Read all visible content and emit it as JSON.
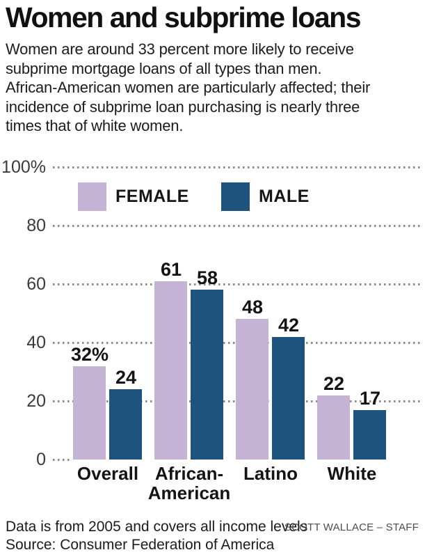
{
  "header": {
    "title": "Women and subprime loans",
    "description": "Women are around 33 percent more likely to receive\nsubprime mortgage loans of all types than men.\nAfrican-American women are particularly affected; their\nincidence of subprime loan purchasing is nearly three\ntimes that of white women."
  },
  "chart_data": {
    "type": "bar",
    "title": "Women and subprime loans",
    "xlabel": "",
    "ylabel": "",
    "ylim": [
      0,
      100
    ],
    "grid": "dotted horizontal gridlines",
    "legend_position": "top inside plot, between 100% and 80 gridlines",
    "categories": [
      "Overall",
      "African-\nAmerican",
      "Latino",
      "White"
    ],
    "series": [
      {
        "name": "FEMALE",
        "color": "#c5b3d6",
        "values": [
          32,
          61,
          48,
          22
        ],
        "labels": [
          "32%",
          "61",
          "48",
          "22"
        ]
      },
      {
        "name": "MALE",
        "color": "#1e537e",
        "values": [
          24,
          58,
          42,
          17
        ],
        "labels": [
          "24",
          "58",
          "42",
          "17"
        ]
      }
    ],
    "y_ticks": [
      {
        "label": "100%",
        "value": 100
      },
      {
        "label": "80",
        "value": 80
      },
      {
        "label": "60",
        "value": 60
      },
      {
        "label": "40",
        "value": 40
      },
      {
        "label": "20",
        "value": 20
      },
      {
        "label": "0",
        "value": 0
      }
    ]
  },
  "footer": {
    "note": "Data is from 2005 and covers all income levels",
    "source": "Source: Consumer Federation of America",
    "credit": "SCOTT WALLACE – STAFF"
  },
  "colors": {
    "female_bar": "#c5b3d6",
    "male_bar": "#1e537e",
    "grid_dots": "#8b8b8b",
    "text": "#141414"
  }
}
